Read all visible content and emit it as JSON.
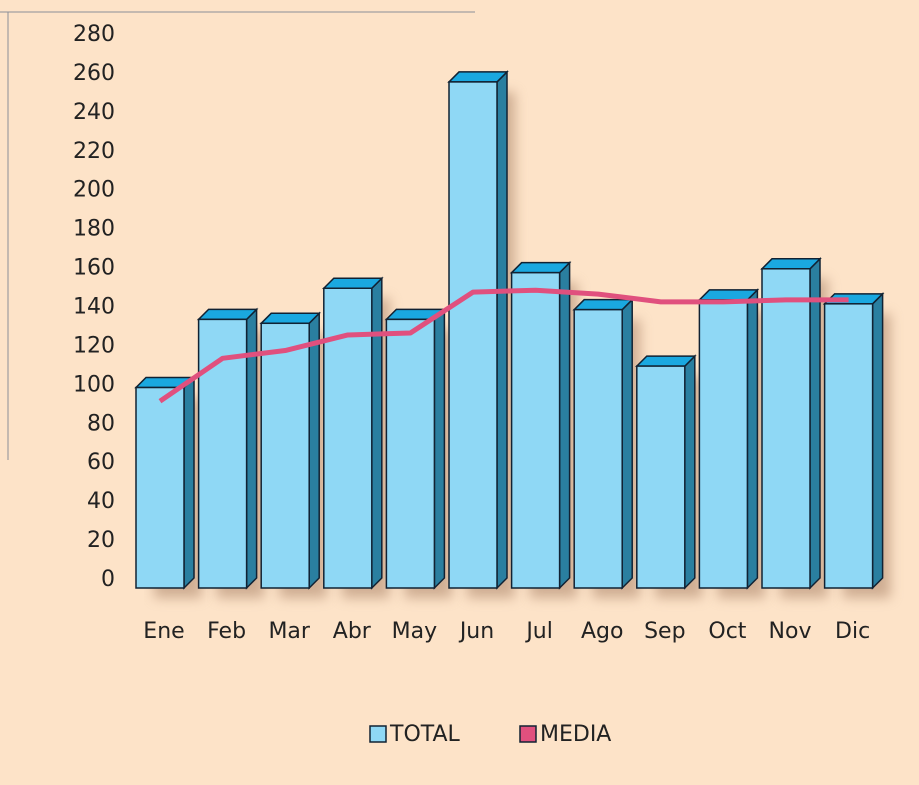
{
  "chart_data": {
    "type": "bar",
    "categories": [
      "Ene",
      "Feb",
      "Mar",
      "Abr",
      "May",
      "Jun",
      "Jul",
      "Ago",
      "Sep",
      "Oct",
      "Nov",
      "Dic"
    ],
    "series": [
      {
        "name": "TOTAL",
        "type": "bar",
        "color": "#8fd8f5",
        "values": [
          103,
          138,
          136,
          154,
          138,
          260,
          162,
          143,
          114,
          148,
          164,
          146
        ]
      },
      {
        "name": "MEDIA",
        "type": "line",
        "color": "#e0507e",
        "values": [
          96,
          118,
          122,
          130,
          131,
          152,
          153,
          151,
          147,
          147,
          148,
          148
        ]
      }
    ],
    "ylim": [
      0,
      280
    ],
    "yticks": [
      0,
      20,
      40,
      60,
      80,
      100,
      120,
      140,
      160,
      180,
      200,
      220,
      240,
      260,
      280
    ],
    "legend": "bottom"
  }
}
